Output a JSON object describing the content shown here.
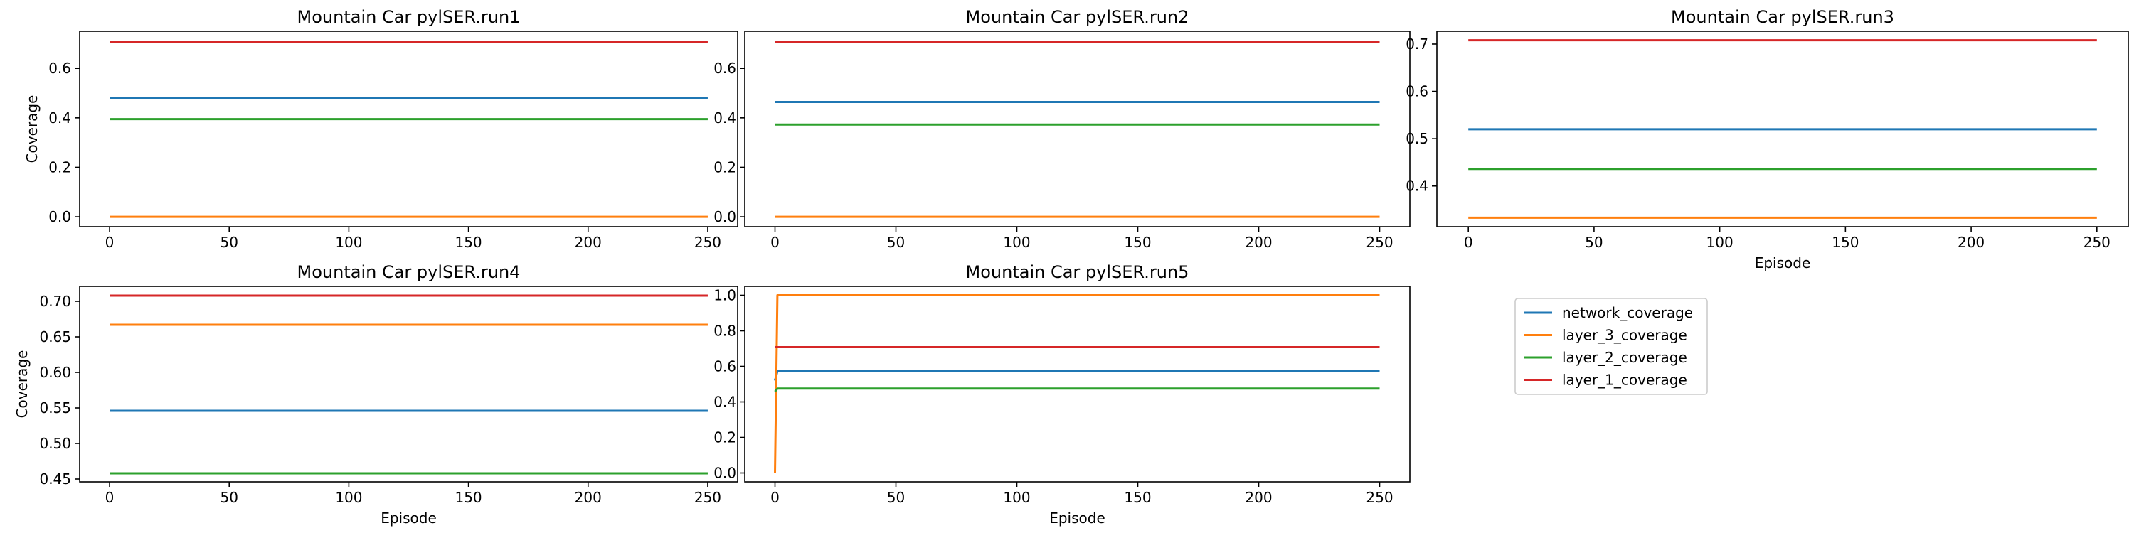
{
  "figure": {
    "legend": {
      "placement": "bottom-right panel",
      "entries": [
        {
          "label": "network_coverage",
          "color": "#1f77b4"
        },
        {
          "label": "layer_3_coverage",
          "color": "#ff7f0e"
        },
        {
          "label": "layer_2_coverage",
          "color": "#2ca02c"
        },
        {
          "label": "layer_1_coverage",
          "color": "#d62728"
        }
      ]
    }
  },
  "chart_data": [
    {
      "type": "line",
      "title": "Mountain Car pylSER.run1",
      "xlabel": "",
      "ylabel": "Coverage",
      "xlim": [
        -12.5,
        262.5
      ],
      "ylim": [
        -0.04,
        0.75
      ],
      "xticks": [
        0,
        50,
        100,
        150,
        200,
        250
      ],
      "yticks": [
        0.0,
        0.2,
        0.4,
        0.6
      ],
      "ytick_labels": [
        "0.0",
        "0.2",
        "0.4",
        "0.6"
      ],
      "grid": false,
      "series": [
        {
          "name": "network_coverage",
          "color": "#1f77b4",
          "x": [
            0,
            250
          ],
          "y": [
            0.48,
            0.48
          ]
        },
        {
          "name": "layer_3_coverage",
          "color": "#ff7f0e",
          "x": [
            0,
            250
          ],
          "y": [
            0.0,
            0.0
          ]
        },
        {
          "name": "layer_2_coverage",
          "color": "#2ca02c",
          "x": [
            0,
            250
          ],
          "y": [
            0.395,
            0.395
          ]
        },
        {
          "name": "layer_1_coverage",
          "color": "#d62728",
          "x": [
            0,
            250
          ],
          "y": [
            0.708,
            0.708
          ]
        }
      ]
    },
    {
      "type": "line",
      "title": "Mountain Car pylSER.run2",
      "xlabel": "",
      "ylabel": "",
      "xlim": [
        -12.5,
        262.5
      ],
      "ylim": [
        -0.04,
        0.75
      ],
      "xticks": [
        0,
        50,
        100,
        150,
        200,
        250
      ],
      "yticks": [
        0.0,
        0.2,
        0.4,
        0.6
      ],
      "ytick_labels": [
        "0.0",
        "0.2",
        "0.4",
        "0.6"
      ],
      "grid": false,
      "series": [
        {
          "name": "network_coverage",
          "color": "#1f77b4",
          "x": [
            0,
            250
          ],
          "y": [
            0.464,
            0.464
          ]
        },
        {
          "name": "layer_3_coverage",
          "color": "#ff7f0e",
          "x": [
            0,
            250
          ],
          "y": [
            0.0,
            0.0
          ]
        },
        {
          "name": "layer_2_coverage",
          "color": "#2ca02c",
          "x": [
            0,
            250
          ],
          "y": [
            0.373,
            0.373
          ]
        },
        {
          "name": "layer_1_coverage",
          "color": "#d62728",
          "x": [
            0,
            250
          ],
          "y": [
            0.708,
            0.708
          ]
        }
      ]
    },
    {
      "type": "line",
      "title": "Mountain Car pylSER.run3",
      "xlabel": "Episode",
      "ylabel": "",
      "xlim": [
        -12.5,
        262.5
      ],
      "ylim": [
        0.314,
        0.727
      ],
      "xticks": [
        0,
        50,
        100,
        150,
        200,
        250
      ],
      "yticks": [
        0.4,
        0.5,
        0.6,
        0.7
      ],
      "ytick_labels": [
        "0.4",
        "0.5",
        "0.6",
        "0.7"
      ],
      "grid": false,
      "series": [
        {
          "name": "network_coverage",
          "color": "#1f77b4",
          "x": [
            0,
            250
          ],
          "y": [
            0.52,
            0.52
          ]
        },
        {
          "name": "layer_3_coverage",
          "color": "#ff7f0e",
          "x": [
            0,
            250
          ],
          "y": [
            0.333,
            0.333
          ]
        },
        {
          "name": "layer_2_coverage",
          "color": "#2ca02c",
          "x": [
            0,
            250
          ],
          "y": [
            0.436,
            0.436
          ]
        },
        {
          "name": "layer_1_coverage",
          "color": "#d62728",
          "x": [
            0,
            250
          ],
          "y": [
            0.708,
            0.708
          ]
        }
      ]
    },
    {
      "type": "line",
      "title": "Mountain Car pylSER.run4",
      "xlabel": "Episode",
      "ylabel": "Coverage",
      "xlim": [
        -12.5,
        262.5
      ],
      "ylim": [
        0.446,
        0.721
      ],
      "xticks": [
        0,
        50,
        100,
        150,
        200,
        250
      ],
      "yticks": [
        0.45,
        0.5,
        0.55,
        0.6,
        0.65,
        0.7
      ],
      "ytick_labels": [
        "0.45",
        "0.50",
        "0.55",
        "0.60",
        "0.65",
        "0.70"
      ],
      "grid": false,
      "series": [
        {
          "name": "network_coverage",
          "color": "#1f77b4",
          "x": [
            0,
            250
          ],
          "y": [
            0.546,
            0.546
          ]
        },
        {
          "name": "layer_3_coverage",
          "color": "#ff7f0e",
          "x": [
            0,
            250
          ],
          "y": [
            0.667,
            0.667
          ]
        },
        {
          "name": "layer_2_coverage",
          "color": "#2ca02c",
          "x": [
            0,
            250
          ],
          "y": [
            0.458,
            0.458
          ]
        },
        {
          "name": "layer_1_coverage",
          "color": "#d62728",
          "x": [
            0,
            250
          ],
          "y": [
            0.708,
            0.708
          ]
        }
      ]
    },
    {
      "type": "line",
      "title": "Mountain Car pylSER.run5",
      "xlabel": "Episode",
      "ylabel": "",
      "xlim": [
        -12.5,
        262.5
      ],
      "ylim": [
        -0.05,
        1.05
      ],
      "xticks": [
        0,
        50,
        100,
        150,
        200,
        250
      ],
      "yticks": [
        0.0,
        0.2,
        0.4,
        0.6,
        0.8,
        1.0
      ],
      "ytick_labels": [
        "0.0",
        "0.2",
        "0.4",
        "0.6",
        "0.8",
        "1.0"
      ],
      "grid": false,
      "series": [
        {
          "name": "network_coverage",
          "color": "#1f77b4",
          "x": [
            0,
            1,
            250
          ],
          "y": [
            0.52,
            0.573,
            0.573
          ]
        },
        {
          "name": "layer_3_coverage",
          "color": "#ff7f0e",
          "x": [
            0,
            1,
            250
          ],
          "y": [
            0.0,
            1.0,
            1.0
          ]
        },
        {
          "name": "layer_2_coverage",
          "color": "#2ca02c",
          "x": [
            0,
            1,
            250
          ],
          "y": [
            0.458,
            0.475,
            0.475
          ]
        },
        {
          "name": "layer_1_coverage",
          "color": "#d62728",
          "x": [
            0,
            250
          ],
          "y": [
            0.708,
            0.708
          ]
        }
      ]
    }
  ]
}
